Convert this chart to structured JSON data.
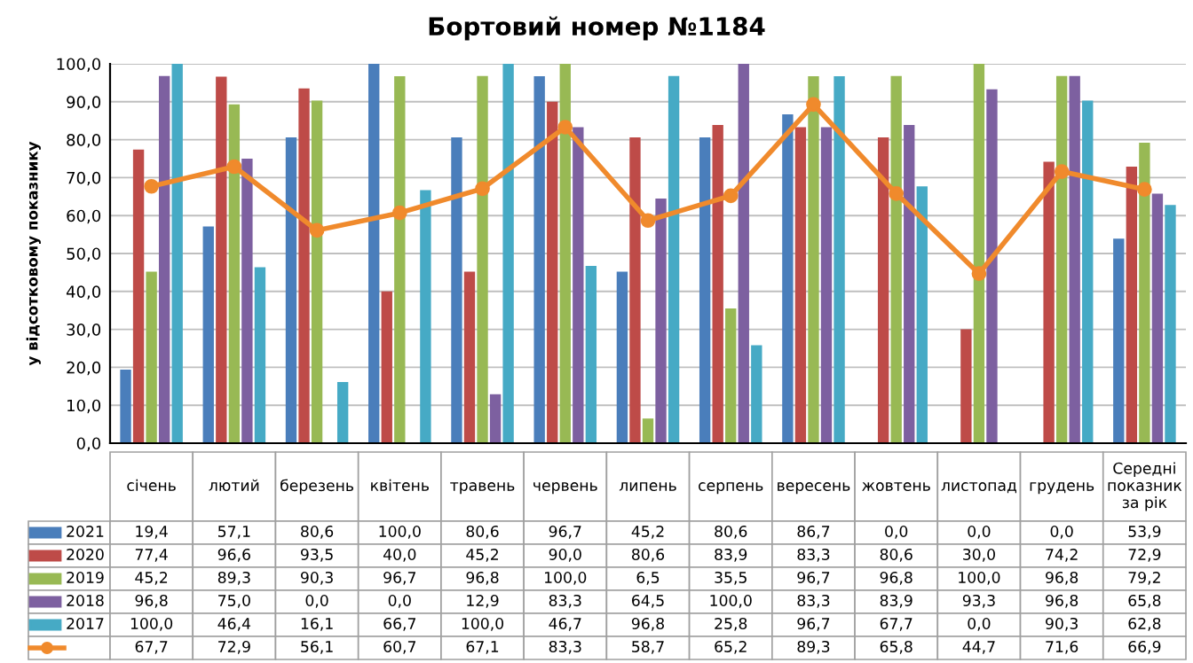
{
  "chart_data": {
    "type": "bar",
    "title": "Бортовий номер №1184",
    "ylabel": "у відсотковому показнику",
    "categories": [
      "січень",
      "лютий",
      "березень",
      "квітень",
      "травень",
      "червень",
      "липень",
      "серпень",
      "вересень",
      "жовтень",
      "листопад",
      "грудень",
      "Середні показник за рік"
    ],
    "series": [
      {
        "name": "2021",
        "color": "#4a7ebb",
        "values": [
          19.4,
          57.1,
          80.6,
          100.0,
          80.6,
          96.7,
          45.2,
          80.6,
          86.7,
          0.0,
          0.0,
          0.0,
          53.9
        ],
        "value_labels": [
          "19,4",
          "57,1",
          "80,6",
          "100,0",
          "80,6",
          "96,7",
          "45,2",
          "80,6",
          "86,7",
          "0,0",
          "0,0",
          "0,0",
          "53,9"
        ]
      },
      {
        "name": "2020",
        "color": "#be4b48",
        "values": [
          77.4,
          96.6,
          93.5,
          40.0,
          45.2,
          90.0,
          80.6,
          83.9,
          83.3,
          80.6,
          30.0,
          74.2,
          72.9
        ],
        "value_labels": [
          "77,4",
          "96,6",
          "93,5",
          "40,0",
          "45,2",
          "90,0",
          "80,6",
          "83,9",
          "83,3",
          "80,6",
          "30,0",
          "74,2",
          "72,9"
        ]
      },
      {
        "name": "2019",
        "color": "#98b954",
        "values": [
          45.2,
          89.3,
          90.3,
          96.7,
          96.8,
          100.0,
          6.5,
          35.5,
          96.7,
          96.8,
          100.0,
          96.8,
          79.2
        ],
        "value_labels": [
          "45,2",
          "89,3",
          "90,3",
          "96,7",
          "96,8",
          "100,0",
          "6,5",
          "35,5",
          "96,7",
          "96,8",
          "100,0",
          "96,8",
          "79,2"
        ]
      },
      {
        "name": "2018",
        "color": "#7d60a0",
        "values": [
          96.8,
          75.0,
          0.0,
          0.0,
          12.9,
          83.3,
          64.5,
          100.0,
          83.3,
          83.9,
          93.3,
          96.8,
          65.8
        ],
        "value_labels": [
          "96,8",
          "75,0",
          "0,0",
          "0,0",
          "12,9",
          "83,3",
          "64,5",
          "100,0",
          "83,3",
          "83,9",
          "93,3",
          "96,8",
          "65,8"
        ]
      },
      {
        "name": "2017",
        "color": "#46aac5",
        "values": [
          100.0,
          46.4,
          16.1,
          66.7,
          100.0,
          46.7,
          96.8,
          25.8,
          96.7,
          67.7,
          0.0,
          90.3,
          62.8
        ],
        "value_labels": [
          "100,0",
          "46,4",
          "16,1",
          "66,7",
          "100,0",
          "46,7",
          "96,8",
          "25,8",
          "96,7",
          "67,7",
          "0,0",
          "90,3",
          "62,8"
        ]
      },
      {
        "type": "line",
        "color": "#f08a2c",
        "marker": "circle",
        "values": [
          67.7,
          72.9,
          56.1,
          60.7,
          67.1,
          83.3,
          58.7,
          65.2,
          89.3,
          65.8,
          44.7,
          71.6,
          66.9
        ],
        "value_labels": [
          "67,7",
          "72,9",
          "56,1",
          "60,7",
          "67,1",
          "83,3",
          "58,7",
          "65,2",
          "89,3",
          "65,8",
          "44,7",
          "71,6",
          "66,9"
        ]
      }
    ],
    "ylim": [
      0,
      100
    ],
    "yticks": [
      {
        "value": 0,
        "label": "0,0"
      },
      {
        "value": 10,
        "label": "10,0"
      },
      {
        "value": 20,
        "label": "20,0"
      },
      {
        "value": 30,
        "label": "30,0"
      },
      {
        "value": 40,
        "label": "40,0"
      },
      {
        "value": 50,
        "label": "50,0"
      },
      {
        "value": 60,
        "label": "60,0"
      },
      {
        "value": 70,
        "label": "70,0"
      },
      {
        "value": 80,
        "label": "80,0"
      },
      {
        "value": 90,
        "label": "90,0"
      },
      {
        "value": 100,
        "label": "100,0"
      }
    ],
    "grid": "y",
    "legend": "bottom"
  }
}
